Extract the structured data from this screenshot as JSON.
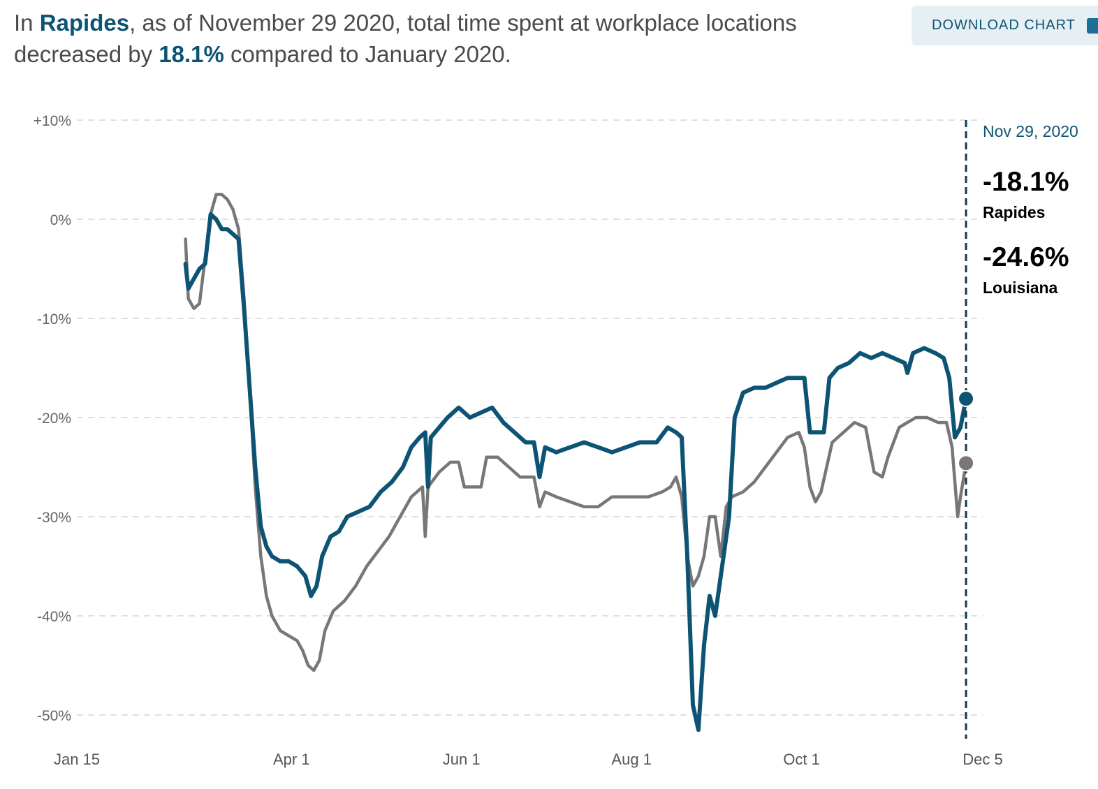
{
  "headline": {
    "prefix": "In ",
    "location": "Rapides",
    "middle": ", as of November 29 2020, total time spent at workplace locations decreased by ",
    "value": "18.1%",
    "suffix": " compared to January 2020."
  },
  "download_button": {
    "label": "DOWNLOAD CHART",
    "icon": "chart-icon"
  },
  "colors": {
    "rapides": "#0d5474",
    "louisiana": "#777777",
    "grid": "#d6d6d6"
  },
  "tooltip": {
    "date": "Nov 29, 2020",
    "items": [
      {
        "value": "-18.1%",
        "name": "Rapides"
      },
      {
        "value": "-24.6%",
        "name": "Louisiana"
      }
    ]
  },
  "chart_data": {
    "type": "line",
    "ylim": [
      -50,
      10
    ],
    "yticks": [
      {
        "value": 10,
        "label": "+10%"
      },
      {
        "value": 0,
        "label": "0%"
      },
      {
        "value": -10,
        "label": "-10%"
      },
      {
        "value": -20,
        "label": "-20%"
      },
      {
        "value": -30,
        "label": "-30%"
      },
      {
        "value": -40,
        "label": "-40%"
      },
      {
        "value": -50,
        "label": "-50%"
      }
    ],
    "xticks": [
      {
        "date": "2020-01-15",
        "label": "Jan 15"
      },
      {
        "date": "2020-04-01",
        "label": "Apr 1"
      },
      {
        "date": "2020-06-01",
        "label": "Jun 1"
      },
      {
        "date": "2020-08-01",
        "label": "Aug 1"
      },
      {
        "date": "2020-10-01",
        "label": "Oct 1"
      },
      {
        "date": "2020-12-05",
        "label": "Dec 5"
      }
    ],
    "xlim": [
      "2020-01-15",
      "2020-12-05"
    ],
    "highlight_date": "2020-11-29",
    "series": [
      {
        "name": "Rapides",
        "points": [
          [
            "2020-02-23",
            -4.5
          ],
          [
            "2020-02-24",
            -7
          ],
          [
            "2020-02-26",
            -6
          ],
          [
            "2020-02-28",
            -5
          ],
          [
            "2020-03-01",
            -4.5
          ],
          [
            "2020-03-03",
            0.5
          ],
          [
            "2020-03-05",
            0
          ],
          [
            "2020-03-07",
            -1
          ],
          [
            "2020-03-09",
            -1
          ],
          [
            "2020-03-11",
            -1.5
          ],
          [
            "2020-03-13",
            -2
          ],
          [
            "2020-03-15",
            -9
          ],
          [
            "2020-03-17",
            -17
          ],
          [
            "2020-03-19",
            -25
          ],
          [
            "2020-03-21",
            -31
          ],
          [
            "2020-03-23",
            -33
          ],
          [
            "2020-03-25",
            -34
          ],
          [
            "2020-03-28",
            -34.5
          ],
          [
            "2020-03-31",
            -34.5
          ],
          [
            "2020-04-03",
            -35
          ],
          [
            "2020-04-06",
            -36
          ],
          [
            "2020-04-08",
            -38
          ],
          [
            "2020-04-10",
            -37
          ],
          [
            "2020-04-12",
            -34
          ],
          [
            "2020-04-15",
            -32
          ],
          [
            "2020-04-18",
            -31.5
          ],
          [
            "2020-04-21",
            -30
          ],
          [
            "2020-04-25",
            -29.5
          ],
          [
            "2020-04-29",
            -29
          ],
          [
            "2020-05-03",
            -27.5
          ],
          [
            "2020-05-07",
            -26.5
          ],
          [
            "2020-05-11",
            -25
          ],
          [
            "2020-05-14",
            -23
          ],
          [
            "2020-05-17",
            -22
          ],
          [
            "2020-05-19",
            -21.5
          ],
          [
            "2020-05-20",
            -27
          ],
          [
            "2020-05-21",
            -22
          ],
          [
            "2020-05-24",
            -21
          ],
          [
            "2020-05-27",
            -20
          ],
          [
            "2020-05-31",
            -19
          ],
          [
            "2020-06-04",
            -20
          ],
          [
            "2020-06-08",
            -19.5
          ],
          [
            "2020-06-12",
            -19
          ],
          [
            "2020-06-16",
            -20.5
          ],
          [
            "2020-06-20",
            -21.5
          ],
          [
            "2020-06-24",
            -22.5
          ],
          [
            "2020-06-27",
            -22.5
          ],
          [
            "2020-06-29",
            -26
          ],
          [
            "2020-07-01",
            -23
          ],
          [
            "2020-07-05",
            -23.5
          ],
          [
            "2020-07-10",
            -23
          ],
          [
            "2020-07-15",
            -22.5
          ],
          [
            "2020-07-20",
            -23
          ],
          [
            "2020-07-25",
            -23.5
          ],
          [
            "2020-07-30",
            -23
          ],
          [
            "2020-08-04",
            -22.5
          ],
          [
            "2020-08-10",
            -22.5
          ],
          [
            "2020-08-14",
            -21
          ],
          [
            "2020-08-17",
            -21.5
          ],
          [
            "2020-08-19",
            -22
          ],
          [
            "2020-08-21",
            -34
          ],
          [
            "2020-08-23",
            -49
          ],
          [
            "2020-08-25",
            -51.5
          ],
          [
            "2020-08-27",
            -43
          ],
          [
            "2020-08-29",
            -38
          ],
          [
            "2020-08-31",
            -40
          ],
          [
            "2020-09-02",
            -36
          ],
          [
            "2020-09-05",
            -30
          ],
          [
            "2020-09-07",
            -20
          ],
          [
            "2020-09-10",
            -17.5
          ],
          [
            "2020-09-14",
            -17
          ],
          [
            "2020-09-18",
            -17
          ],
          [
            "2020-09-22",
            -16.5
          ],
          [
            "2020-09-26",
            -16
          ],
          [
            "2020-09-30",
            -16
          ],
          [
            "2020-10-02",
            -16
          ],
          [
            "2020-10-04",
            -21.5
          ],
          [
            "2020-10-06",
            -21.5
          ],
          [
            "2020-10-09",
            -21.5
          ],
          [
            "2020-10-11",
            -16
          ],
          [
            "2020-10-14",
            -15
          ],
          [
            "2020-10-18",
            -14.5
          ],
          [
            "2020-10-22",
            -13.5
          ],
          [
            "2020-10-26",
            -14
          ],
          [
            "2020-10-30",
            -13.5
          ],
          [
            "2020-11-03",
            -14
          ],
          [
            "2020-11-07",
            -14.5
          ],
          [
            "2020-11-08",
            -15.5
          ],
          [
            "2020-11-10",
            -13.5
          ],
          [
            "2020-11-14",
            -13
          ],
          [
            "2020-11-18",
            -13.5
          ],
          [
            "2020-11-21",
            -14
          ],
          [
            "2020-11-23",
            -16
          ],
          [
            "2020-11-25",
            -22
          ],
          [
            "2020-11-27",
            -21
          ],
          [
            "2020-11-29",
            -18.1
          ]
        ]
      },
      {
        "name": "Louisiana",
        "points": [
          [
            "2020-02-23",
            -2
          ],
          [
            "2020-02-24",
            -8
          ],
          [
            "2020-02-26",
            -9
          ],
          [
            "2020-02-28",
            -8.5
          ],
          [
            "2020-03-01",
            -4
          ],
          [
            "2020-03-03",
            0.5
          ],
          [
            "2020-03-05",
            2.5
          ],
          [
            "2020-03-07",
            2.5
          ],
          [
            "2020-03-09",
            2
          ],
          [
            "2020-03-11",
            1
          ],
          [
            "2020-03-13",
            -1
          ],
          [
            "2020-03-15",
            -8
          ],
          [
            "2020-03-17",
            -17
          ],
          [
            "2020-03-19",
            -27
          ],
          [
            "2020-03-21",
            -34
          ],
          [
            "2020-03-23",
            -38
          ],
          [
            "2020-03-25",
            -40
          ],
          [
            "2020-03-28",
            -41.5
          ],
          [
            "2020-03-31",
            -42
          ],
          [
            "2020-04-03",
            -42.5
          ],
          [
            "2020-04-05",
            -43.5
          ],
          [
            "2020-04-07",
            -45
          ],
          [
            "2020-04-09",
            -45.5
          ],
          [
            "2020-04-11",
            -44.5
          ],
          [
            "2020-04-13",
            -41.5
          ],
          [
            "2020-04-16",
            -39.5
          ],
          [
            "2020-04-20",
            -38.5
          ],
          [
            "2020-04-24",
            -37
          ],
          [
            "2020-04-28",
            -35
          ],
          [
            "2020-05-02",
            -33.5
          ],
          [
            "2020-05-06",
            -32
          ],
          [
            "2020-05-10",
            -30
          ],
          [
            "2020-05-14",
            -28
          ],
          [
            "2020-05-18",
            -27
          ],
          [
            "2020-05-19",
            -32
          ],
          [
            "2020-05-20",
            -27
          ],
          [
            "2020-05-24",
            -25.5
          ],
          [
            "2020-05-28",
            -24.5
          ],
          [
            "2020-05-31",
            -24.5
          ],
          [
            "2020-06-02",
            -27
          ],
          [
            "2020-06-08",
            -27
          ],
          [
            "2020-06-10",
            -24
          ],
          [
            "2020-06-14",
            -24
          ],
          [
            "2020-06-18",
            -25
          ],
          [
            "2020-06-22",
            -26
          ],
          [
            "2020-06-27",
            -26
          ],
          [
            "2020-06-29",
            -29
          ],
          [
            "2020-07-01",
            -27.5
          ],
          [
            "2020-07-05",
            -28
          ],
          [
            "2020-07-10",
            -28.5
          ],
          [
            "2020-07-15",
            -29
          ],
          [
            "2020-07-20",
            -29
          ],
          [
            "2020-07-25",
            -28
          ],
          [
            "2020-08-01",
            -28
          ],
          [
            "2020-08-07",
            -28
          ],
          [
            "2020-08-12",
            -27.5
          ],
          [
            "2020-08-15",
            -27
          ],
          [
            "2020-08-17",
            -26
          ],
          [
            "2020-08-19",
            -28
          ],
          [
            "2020-08-21",
            -34
          ],
          [
            "2020-08-23",
            -37
          ],
          [
            "2020-08-25",
            -36
          ],
          [
            "2020-08-27",
            -34
          ],
          [
            "2020-08-29",
            -30
          ],
          [
            "2020-08-31",
            -30
          ],
          [
            "2020-09-02",
            -34
          ],
          [
            "2020-09-04",
            -29
          ],
          [
            "2020-09-06",
            -28
          ],
          [
            "2020-09-10",
            -27.5
          ],
          [
            "2020-09-14",
            -26.5
          ],
          [
            "2020-09-18",
            -25
          ],
          [
            "2020-09-22",
            -23.5
          ],
          [
            "2020-09-26",
            -22
          ],
          [
            "2020-09-30",
            -21.5
          ],
          [
            "2020-10-02",
            -23
          ],
          [
            "2020-10-04",
            -27
          ],
          [
            "2020-10-06",
            -28.5
          ],
          [
            "2020-10-08",
            -27.5
          ],
          [
            "2020-10-12",
            -22.5
          ],
          [
            "2020-10-16",
            -21.5
          ],
          [
            "2020-10-20",
            -20.5
          ],
          [
            "2020-10-24",
            -21
          ],
          [
            "2020-10-27",
            -25.5
          ],
          [
            "2020-10-30",
            -26
          ],
          [
            "2020-11-01",
            -24
          ],
          [
            "2020-11-03",
            -22.5
          ],
          [
            "2020-11-05",
            -21
          ],
          [
            "2020-11-08",
            -20.5
          ],
          [
            "2020-11-11",
            -20
          ],
          [
            "2020-11-15",
            -20
          ],
          [
            "2020-11-19",
            -20.5
          ],
          [
            "2020-11-22",
            -20.5
          ],
          [
            "2020-11-24",
            -23
          ],
          [
            "2020-11-26",
            -30
          ],
          [
            "2020-11-27",
            -28
          ],
          [
            "2020-11-29",
            -24.6
          ]
        ]
      }
    ]
  }
}
